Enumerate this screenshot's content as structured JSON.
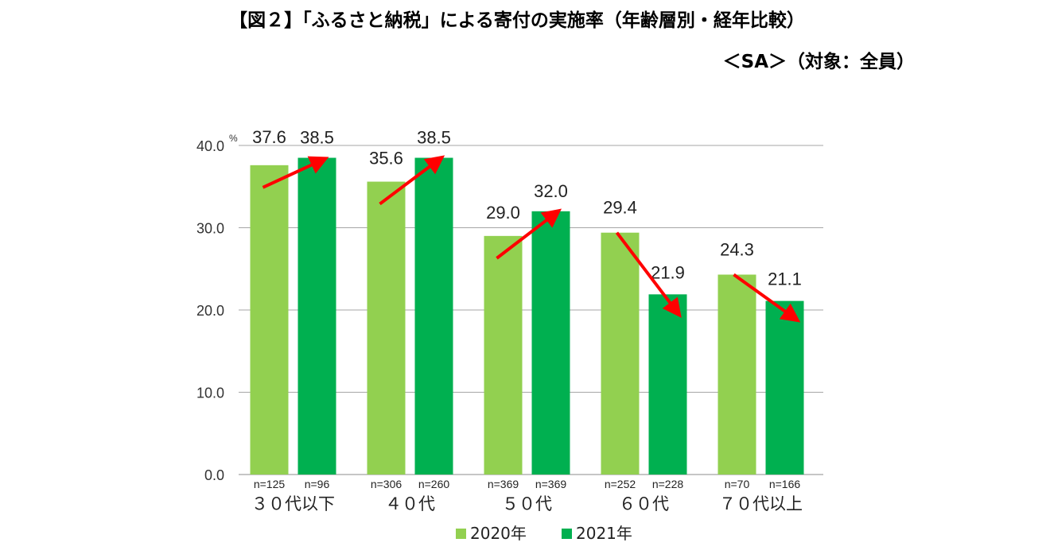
{
  "header": {
    "title": "【図２】「ふるさと納税」による寄付の実施率（年齢層別・経年比較）",
    "subtitle": "＜SA＞（対象：全員）"
  },
  "chart_data": {
    "type": "bar",
    "unit": "%",
    "categories": [
      "３０代以下",
      "４０代",
      "５０代",
      "６０代",
      "７０代以上"
    ],
    "series": [
      {
        "name": "2020年",
        "values": [
          37.6,
          35.6,
          29.0,
          29.4,
          24.3
        ],
        "n": [
          "n=125",
          "n=306",
          "n=369",
          "n=252",
          "n=70"
        ],
        "color": "#92d050"
      },
      {
        "name": "2021年",
        "values": [
          38.5,
          38.5,
          32.0,
          21.9,
          21.1
        ],
        "n": [
          "n=96",
          "n=260",
          "n=369",
          "n=228",
          "n=166"
        ],
        "color": "#00b050"
      }
    ],
    "ylim": [
      0,
      40
    ],
    "yticks": [
      "0.0",
      "10.0",
      "20.0",
      "30.0",
      "40.0"
    ],
    "grid": true,
    "legend_position": "bottom",
    "annotation": "red arrows from 2020 bar to 2021 bar showing trend",
    "arrow_color": "#ff0000"
  }
}
